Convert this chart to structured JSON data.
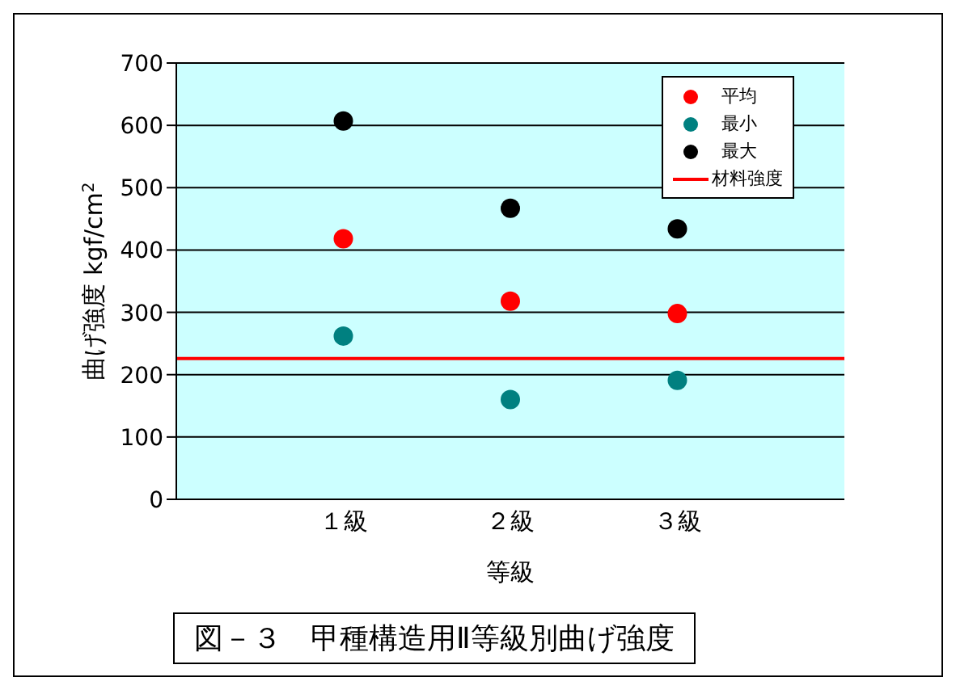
{
  "chart_data": {
    "type": "scatter",
    "title": "図－３　甲種構造用Ⅱ等級別曲げ強度",
    "xlabel": "等級",
    "ylabel": "曲げ強度 kgf/cm$^{2}$",
    "categories": [
      "１級",
      "２級",
      "３級"
    ],
    "series": [
      {
        "name": "平均",
        "color": "#ff0000",
        "values": [
          418,
          318,
          298
        ]
      },
      {
        "name": "最小",
        "color": "#008080",
        "values": [
          262,
          160,
          191
        ]
      },
      {
        "name": "最大",
        "color": "#000000",
        "values": [
          607,
          467,
          434
        ]
      }
    ],
    "ref_lines": [
      {
        "axis": "y",
        "value": 226,
        "label": "材料強度",
        "color": "#ff0000"
      }
    ],
    "ylim": [
      0,
      700
    ],
    "yticks": [
      0,
      100,
      200,
      300,
      400,
      500,
      600,
      700
    ],
    "grid": "y",
    "legend": "top right",
    "marker": "circle"
  }
}
